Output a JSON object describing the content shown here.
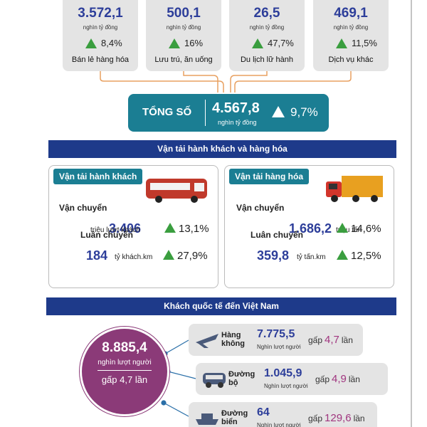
{
  "top_cards": [
    {
      "value": "3.572,1",
      "unit": "nghìn tỷ đồng",
      "change": "8,4%",
      "label": "Bán lẻ hàng hóa"
    },
    {
      "value": "500,1",
      "unit": "nghìn tỷ đồng",
      "change": "16%",
      "label": "Lưu trú, ăn uống"
    },
    {
      "value": "26,5",
      "unit": "nghìn tỷ đồng",
      "change": "47,7%",
      "label": "Du lịch lữ hành"
    },
    {
      "value": "469,1",
      "unit": "nghìn tỷ đồng",
      "change": "11,5%",
      "label": "Dịch vụ khác"
    }
  ],
  "total": {
    "label": "TỔNG SỐ",
    "value": "4.567,8",
    "unit": "nghìn tỷ đồng",
    "change": "9,7%"
  },
  "transport": {
    "title": "Vận tải hành khách và hàng hóa",
    "panels": [
      {
        "title": "Vận tải hành khách",
        "rows": [
          {
            "label": "Vận chuyển",
            "value": "3.406",
            "unit": "triệu lượt khách",
            "change": "13,1%"
          },
          {
            "label": "Luân chuyển",
            "value": "184",
            "unit": "tỷ khách.km",
            "change": "27,9%"
          }
        ]
      },
      {
        "title": "Vận tải hàng hóa",
        "rows": [
          {
            "label": "Vận chuyển",
            "value": "1.686,2",
            "unit": "triệu tấn",
            "change": "14,6%"
          },
          {
            "label": "Luân chuyển",
            "value": "359,8",
            "unit": "tỷ tấn.km",
            "change": "12,5%"
          }
        ]
      }
    ]
  },
  "visitors": {
    "title": "Khách quốc tế đến Việt Nam",
    "total": {
      "value": "8.885,4",
      "unit": "nghìn lượt người",
      "ratio": "gấp 4,7 lần"
    },
    "modes": [
      {
        "label": "Hàng không",
        "value": "7.775,5",
        "unit": "Nghìn lượt người",
        "ratio_prefix": "gấp",
        "ratio": "4,7",
        "ratio_suffix": "lần"
      },
      {
        "label": "Đường bộ",
        "value": "1.045,9",
        "unit": "Nghìn lượt người",
        "ratio_prefix": "gấp",
        "ratio": "4,9",
        "ratio_suffix": "lần"
      },
      {
        "label": "Đường biển",
        "value": "64",
        "unit": "Nghìn lượt người",
        "ratio_prefix": "gấp",
        "ratio": "129,6",
        "ratio_suffix": "lần"
      }
    ]
  }
}
